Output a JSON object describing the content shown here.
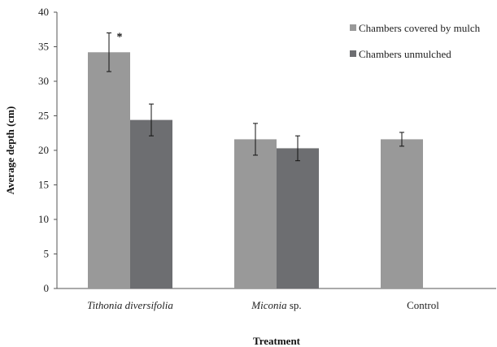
{
  "chart_data": {
    "type": "bar",
    "xlabel": "Treatment",
    "ylabel": "Average depth (cm)",
    "ylim": [
      0,
      40
    ],
    "yticks": [
      0,
      5,
      10,
      15,
      20,
      25,
      30,
      35,
      40
    ],
    "grid": false,
    "legend_position": "top-right",
    "categories": [
      {
        "name": "Tithonia diversifolia",
        "italic": "Tithonia diversifolia",
        "rest": ""
      },
      {
        "name": "Miconia sp.",
        "italic": "Miconia",
        "rest": " sp."
      },
      {
        "name": "Control",
        "italic": "",
        "rest": "Control"
      }
    ],
    "series": [
      {
        "name": "Chambers covered by mulch",
        "color": "#999999",
        "values": [
          34.2,
          21.6,
          21.6
        ],
        "errors": [
          2.8,
          2.3,
          1.0
        ]
      },
      {
        "name": "Chambers unmulched",
        "color": "#6d6e71",
        "values": [
          24.4,
          20.3,
          null
        ],
        "errors": [
          2.3,
          1.8,
          null
        ]
      }
    ],
    "annotations": [
      {
        "text": "*",
        "category": 0,
        "series": 0
      }
    ]
  }
}
